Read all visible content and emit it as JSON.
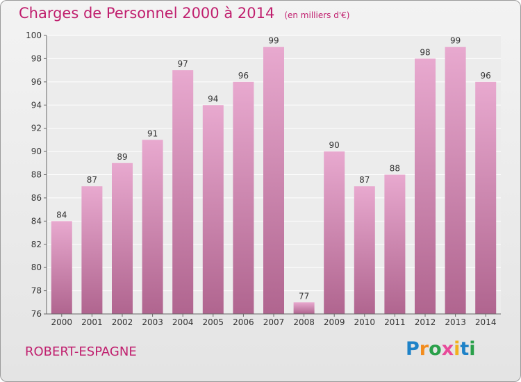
{
  "header": {
    "title": "Charges de Personnel 2000 à 2014",
    "subtitle": "(en milliers d'€)"
  },
  "footer": {
    "commune": "ROBERT-ESPAGNE",
    "logo_text": "Proxiti"
  },
  "colors": {
    "accent": "#c01f6e",
    "bar_light": "#e8a9cf",
    "bar_dark": "#b0658f",
    "label_text": "#333333"
  },
  "chart_data": {
    "type": "bar",
    "title": "Charges de Personnel 2000 à 2014",
    "subtitle": "(en milliers d'€)",
    "xlabel": "",
    "ylabel": "",
    "categories": [
      "2000",
      "2001",
      "2002",
      "2003",
      "2004",
      "2005",
      "2006",
      "2007",
      "2008",
      "2009",
      "2010",
      "2011",
      "2012",
      "2013",
      "2014"
    ],
    "values": [
      84,
      87,
      89,
      91,
      97,
      94,
      96,
      99,
      77,
      90,
      87,
      88,
      98,
      99,
      96
    ],
    "ylim": [
      76,
      100
    ],
    "yticks": [
      76,
      78,
      80,
      82,
      84,
      86,
      88,
      90,
      92,
      94,
      96,
      98,
      100
    ],
    "grid": true,
    "data_labels": true
  }
}
